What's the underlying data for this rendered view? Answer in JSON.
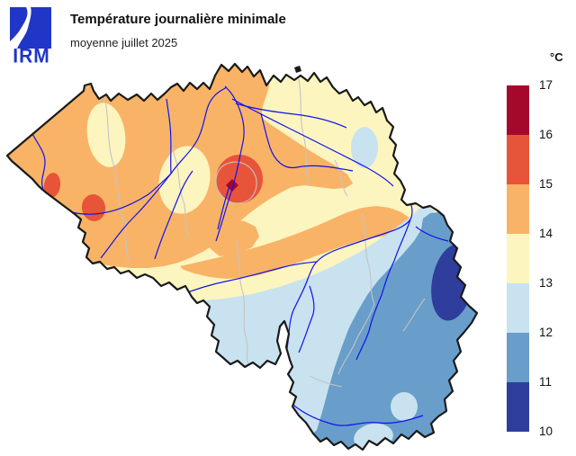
{
  "header": {
    "logo_text": "IRM",
    "title": "Température journalière minimale",
    "subtitle": "moyenne juillet 2025"
  },
  "legend": {
    "unit": "°C",
    "tick_labels": [
      "17",
      "16",
      "15",
      "14",
      "13",
      "12",
      "11",
      "10"
    ],
    "bands": [
      {
        "range": "16-17",
        "color": "#A6082C"
      },
      {
        "range": "15-16",
        "color": "#E8543A"
      },
      {
        "range": "14-15",
        "color": "#F9B366"
      },
      {
        "range": "13-14",
        "color": "#FCF5BF"
      },
      {
        "range": "12-13",
        "color": "#C8E2EF"
      },
      {
        "range": "11-12",
        "color": "#689EC9"
      },
      {
        "range": "10-11",
        "color": "#2F3E9D"
      }
    ]
  },
  "map": {
    "region": "Belgium",
    "colors": {
      "outline": "#1a1a1a",
      "band_16_17": "#A6082C",
      "band_15_16": "#E8543A",
      "band_14_15": "#F9B366",
      "band_13_14": "#FCF5BF",
      "band_12_13": "#C8E2EF",
      "band_11_12": "#689EC9",
      "band_10_11": "#2F3E9D",
      "river": "#1212EE",
      "province_border": "#C4C4C4",
      "logo": "#1F36C7"
    }
  }
}
